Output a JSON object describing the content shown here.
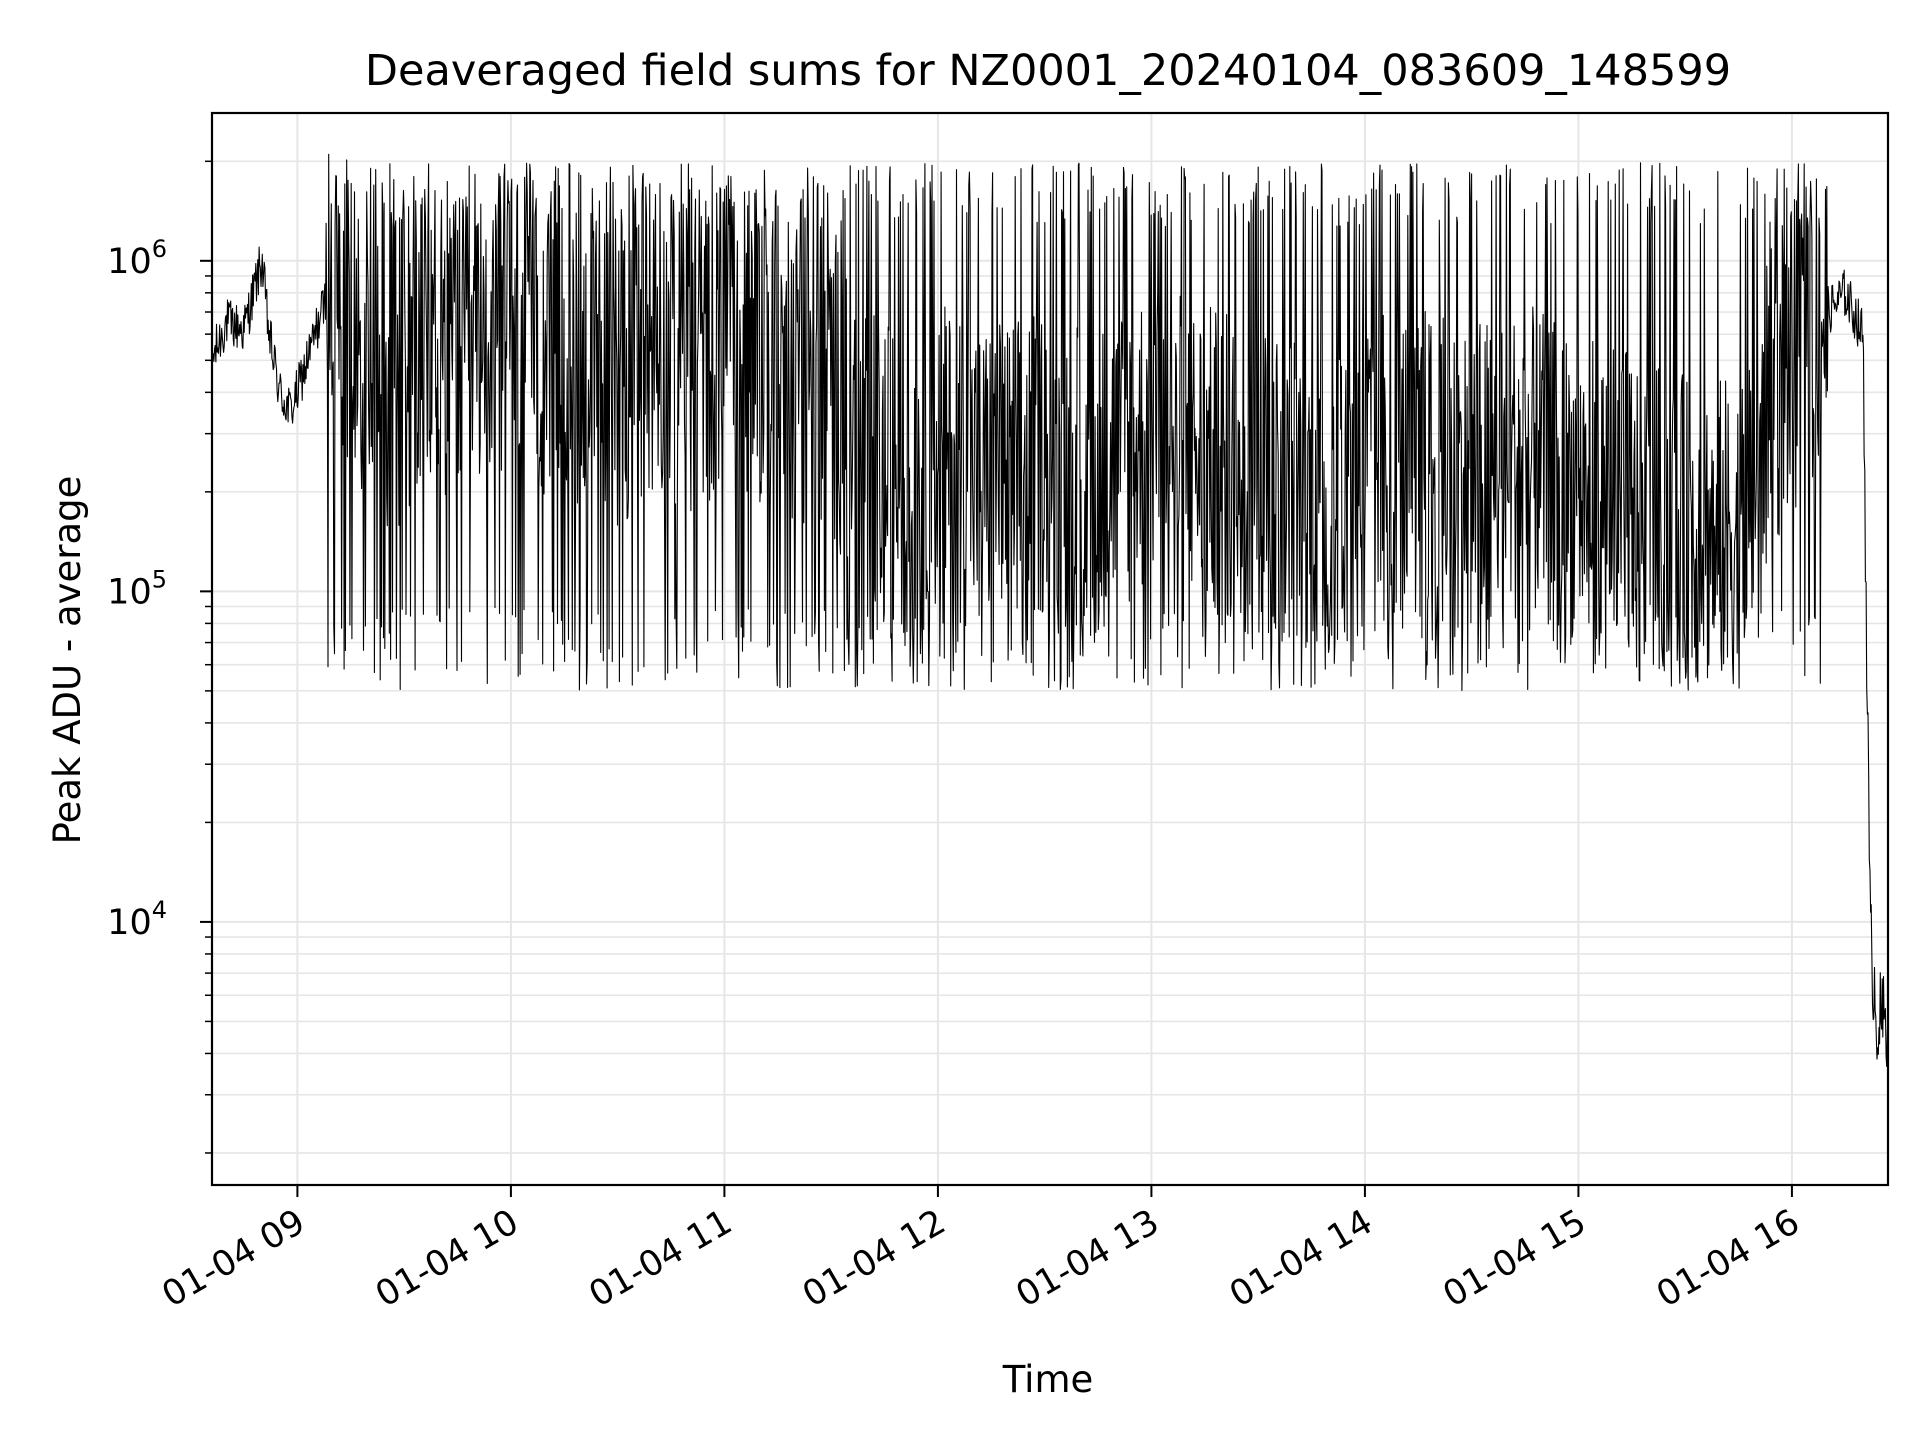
{
  "chart_data": {
    "type": "line",
    "title": "Deaveraged field sums for NZ0001_20240104_083609_148599",
    "xlabel": "Time",
    "ylabel": "Peak ADU - average",
    "x_ticks": [
      "01-04 09",
      "01-04 10",
      "01-04 11",
      "01-04 12",
      "01-04 13",
      "01-04 14",
      "01-04 15",
      "01-04 16"
    ],
    "y_ticks": [
      {
        "value": 10000,
        "base": "10",
        "exp": "4"
      },
      {
        "value": 100000,
        "base": "10",
        "exp": "5"
      },
      {
        "value": 1000000,
        "base": "10",
        "exp": "6"
      }
    ],
    "xlim": [
      "2024-01-04 08:36",
      "2024-01-04 16:27"
    ],
    "ylim": [
      1600,
      2800000
    ],
    "yscale": "log",
    "grid": true,
    "line_color": "#000000",
    "grid_color": "#e6e6e6",
    "series": [
      {
        "x": [
          "2024-01-04 08:36",
          "2024-01-04 08:40",
          "2024-01-04 08:45",
          "2024-01-04 08:50",
          "2024-01-04 08:52",
          "2024-01-04 08:55",
          "2024-01-04 08:58",
          "2024-01-04 09:00",
          "2024-01-04 09:05",
          "2024-01-04 09:10",
          "2024-01-04 09:15",
          "2024-01-04 09:20",
          "2024-01-04 09:30",
          "2024-01-04 09:40",
          "2024-01-04 09:50",
          "2024-01-04 10:00",
          "2024-01-04 10:15",
          "2024-01-04 10:30",
          "2024-01-04 10:40",
          "2024-01-04 10:50",
          "2024-01-04 11:00",
          "2024-01-04 11:15",
          "2024-01-04 11:30",
          "2024-01-04 11:40",
          "2024-01-04 11:50",
          "2024-01-04 12:00",
          "2024-01-04 12:15",
          "2024-01-04 12:30",
          "2024-01-04 12:45",
          "2024-01-04 13:00",
          "2024-01-04 13:15",
          "2024-01-04 13:30",
          "2024-01-04 13:45",
          "2024-01-04 14:00",
          "2024-01-04 14:15",
          "2024-01-04 14:30",
          "2024-01-04 14:45",
          "2024-01-04 15:00",
          "2024-01-04 15:15",
          "2024-01-04 15:30",
          "2024-01-04 15:45",
          "2024-01-04 15:55",
          "2024-01-04 16:00",
          "2024-01-04 16:05",
          "2024-01-04 16:10",
          "2024-01-04 16:15",
          "2024-01-04 16:20",
          "2024-01-04 16:22",
          "2024-01-04 16:24",
          "2024-01-04 16:26"
        ],
        "y": [
          500000,
          650000,
          620000,
          1000000,
          600000,
          400000,
          350000,
          400000,
          600000,
          900000,
          700000,
          500000,
          450000,
          600000,
          500000,
          700000,
          500000,
          450000,
          550000,
          500000,
          600000,
          500000,
          450000,
          250000,
          200000,
          250000,
          220000,
          250000,
          220000,
          300000,
          250000,
          220000,
          200000,
          250000,
          250000,
          220000,
          250000,
          200000,
          180000,
          150000,
          150000,
          400000,
          500000,
          600000,
          700000,
          800000,
          600000,
          9000,
          5000,
          5000
        ]
      }
    ]
  }
}
